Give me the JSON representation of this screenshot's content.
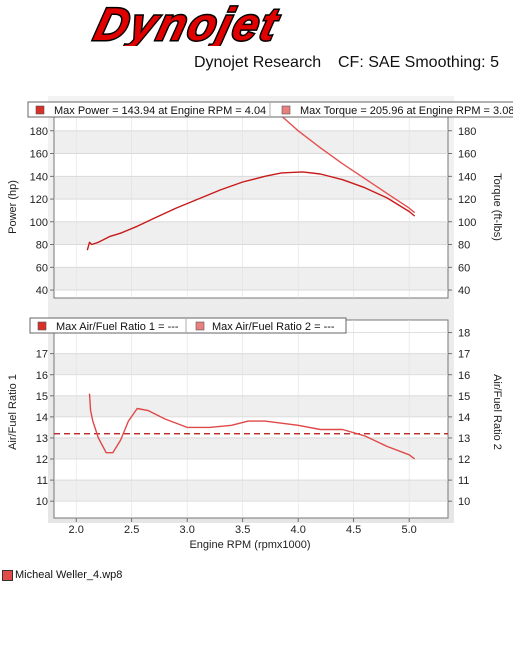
{
  "logo": {
    "text": "Dynojet",
    "color": "#e00000"
  },
  "header": {
    "company": "Dynojet Research",
    "settings": "CF: SAE Smoothing: 5"
  },
  "file_legend": {
    "label": "Micheal Weller_4.wp8",
    "color": "#e34a4a"
  },
  "chart_data": [
    {
      "type": "line",
      "panel": "top",
      "legend": [
        {
          "label": "Max Power = 143.94 at Engine RPM = 4.04",
          "color": "#d63028"
        },
        {
          "label": "Max Torque = 205.96 at Engine RPM = 3.08",
          "color": "#e88080"
        }
      ],
      "left_axis": {
        "label": "Power (hp)",
        "ylim": [
          33,
          193
        ],
        "ticks": [
          40,
          60,
          80,
          100,
          120,
          140,
          160,
          180
        ]
      },
      "right_axis": {
        "label": "Torque (ft-lbs)",
        "ylim": [
          33,
          193
        ],
        "ticks": [
          40,
          60,
          80,
          100,
          120,
          140,
          160,
          180
        ]
      },
      "xlim": [
        1.8,
        5.35
      ],
      "series": [
        {
          "name": "Power",
          "color": "#c81a1a",
          "x": [
            2.1,
            2.12,
            2.14,
            2.2,
            2.3,
            2.4,
            2.55,
            2.7,
            2.9,
            3.1,
            3.3,
            3.5,
            3.7,
            3.85,
            4.04,
            4.2,
            4.4,
            4.6,
            4.8,
            5.0,
            5.05
          ],
          "y": [
            75,
            82,
            80,
            82,
            87,
            90,
            96,
            103,
            112,
            120,
            128,
            135,
            140,
            143,
            143.9,
            142,
            137,
            130,
            121,
            109,
            105
          ]
        },
        {
          "name": "Torque",
          "color": "#e65050",
          "x": [
            3.85,
            4.0,
            4.2,
            4.4,
            4.6,
            4.8,
            5.0,
            5.05
          ],
          "y": [
            193,
            180,
            165,
            151,
            138,
            125,
            112,
            108
          ]
        }
      ]
    },
    {
      "type": "line",
      "panel": "bottom",
      "legend": [
        {
          "label": "Max Air/Fuel Ratio 1 = ---",
          "color": "#d63028"
        },
        {
          "label": "Max Air/Fuel Ratio 2 = ---",
          "color": "#e88080"
        }
      ],
      "left_axis": {
        "label": "Air/Fuel Ratio 1",
        "ylim": [
          9.2,
          18.6
        ],
        "ticks": [
          10,
          11,
          12,
          13,
          14,
          15,
          16,
          17
        ]
      },
      "right_axis": {
        "label": "Air/Fuel Ratio 2",
        "ylim": [
          9.2,
          18.6
        ],
        "ticks": [
          10,
          11,
          12,
          13,
          14,
          15,
          16,
          17,
          18
        ]
      },
      "xlim": [
        1.8,
        5.35
      ],
      "reference_line": {
        "y": 13.2,
        "style": "dashed",
        "color": "#b01010"
      },
      "series": [
        {
          "name": "Air/Fuel Ratio 1",
          "color": "#e04848",
          "x": [
            2.12,
            2.13,
            2.15,
            2.2,
            2.27,
            2.33,
            2.4,
            2.47,
            2.55,
            2.65,
            2.8,
            3.0,
            3.2,
            3.4,
            3.55,
            3.7,
            3.85,
            4.0,
            4.2,
            4.4,
            4.6,
            4.8,
            5.0,
            5.05
          ],
          "y": [
            15.1,
            14.3,
            13.8,
            13.0,
            12.3,
            12.3,
            12.9,
            13.8,
            14.4,
            14.3,
            13.9,
            13.5,
            13.5,
            13.6,
            13.8,
            13.8,
            13.7,
            13.6,
            13.4,
            13.4,
            13.1,
            12.6,
            12.2,
            12.0
          ]
        }
      ]
    }
  ],
  "x_axis": {
    "label": "Engine RPM (rpmx1000)",
    "ticks": [
      "2.0",
      "2.5",
      "3.0",
      "3.5",
      "4.0",
      "4.5",
      "5.0"
    ]
  }
}
